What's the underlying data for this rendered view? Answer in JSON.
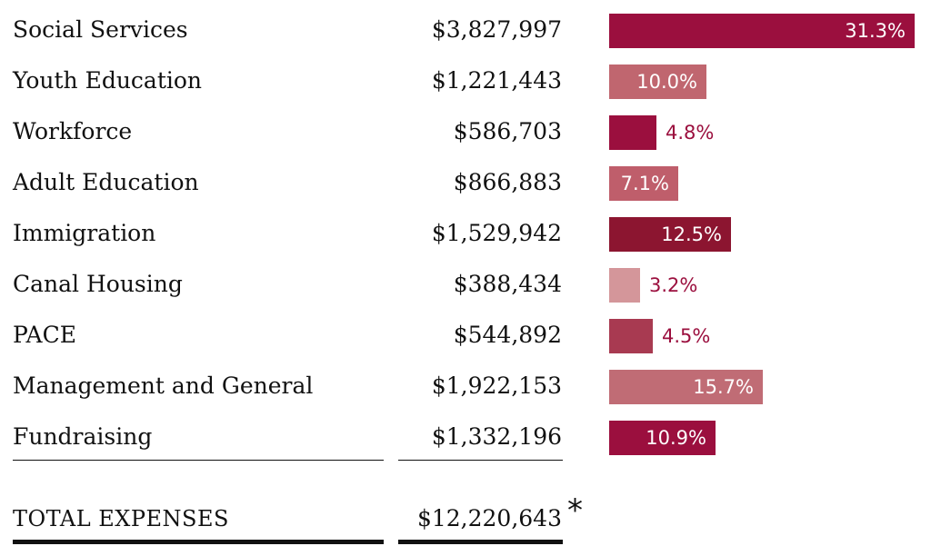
{
  "chart_data": {
    "type": "bar",
    "orientation": "horizontal",
    "categories": [
      "Social Services",
      "Youth Education",
      "Workforce",
      "Adult Education",
      "Immigration",
      "Canal Housing",
      "PACE",
      "Management and General",
      "Fundraising"
    ],
    "amounts": [
      "$3,827,997",
      "$1,221,443",
      "$586,703",
      "$866,883",
      "$1,529,942",
      "$388,434",
      "$544,892",
      "$1,922,153",
      "$1,332,196"
    ],
    "values": [
      31.3,
      10.0,
      4.8,
      7.1,
      12.5,
      3.2,
      4.5,
      15.7,
      10.9
    ],
    "value_labels": [
      "31.3%",
      "10.0%",
      "4.8%",
      "7.1%",
      "12.5%",
      "3.2%",
      "4.5%",
      "15.7%",
      "10.9%"
    ],
    "colors": [
      "#9b0f3e",
      "#c0666f",
      "#9b0f3e",
      "#bf5e6b",
      "#8c1530",
      "#d4969a",
      "#a83a51",
      "#c06c75",
      "#9b0f3e"
    ],
    "label_color_outside": "#9b0f3e",
    "xlim": [
      0,
      31.3
    ],
    "total": {
      "label": "TOTAL EXPENSES",
      "amount": "$12,220,643",
      "marker": "*"
    }
  }
}
